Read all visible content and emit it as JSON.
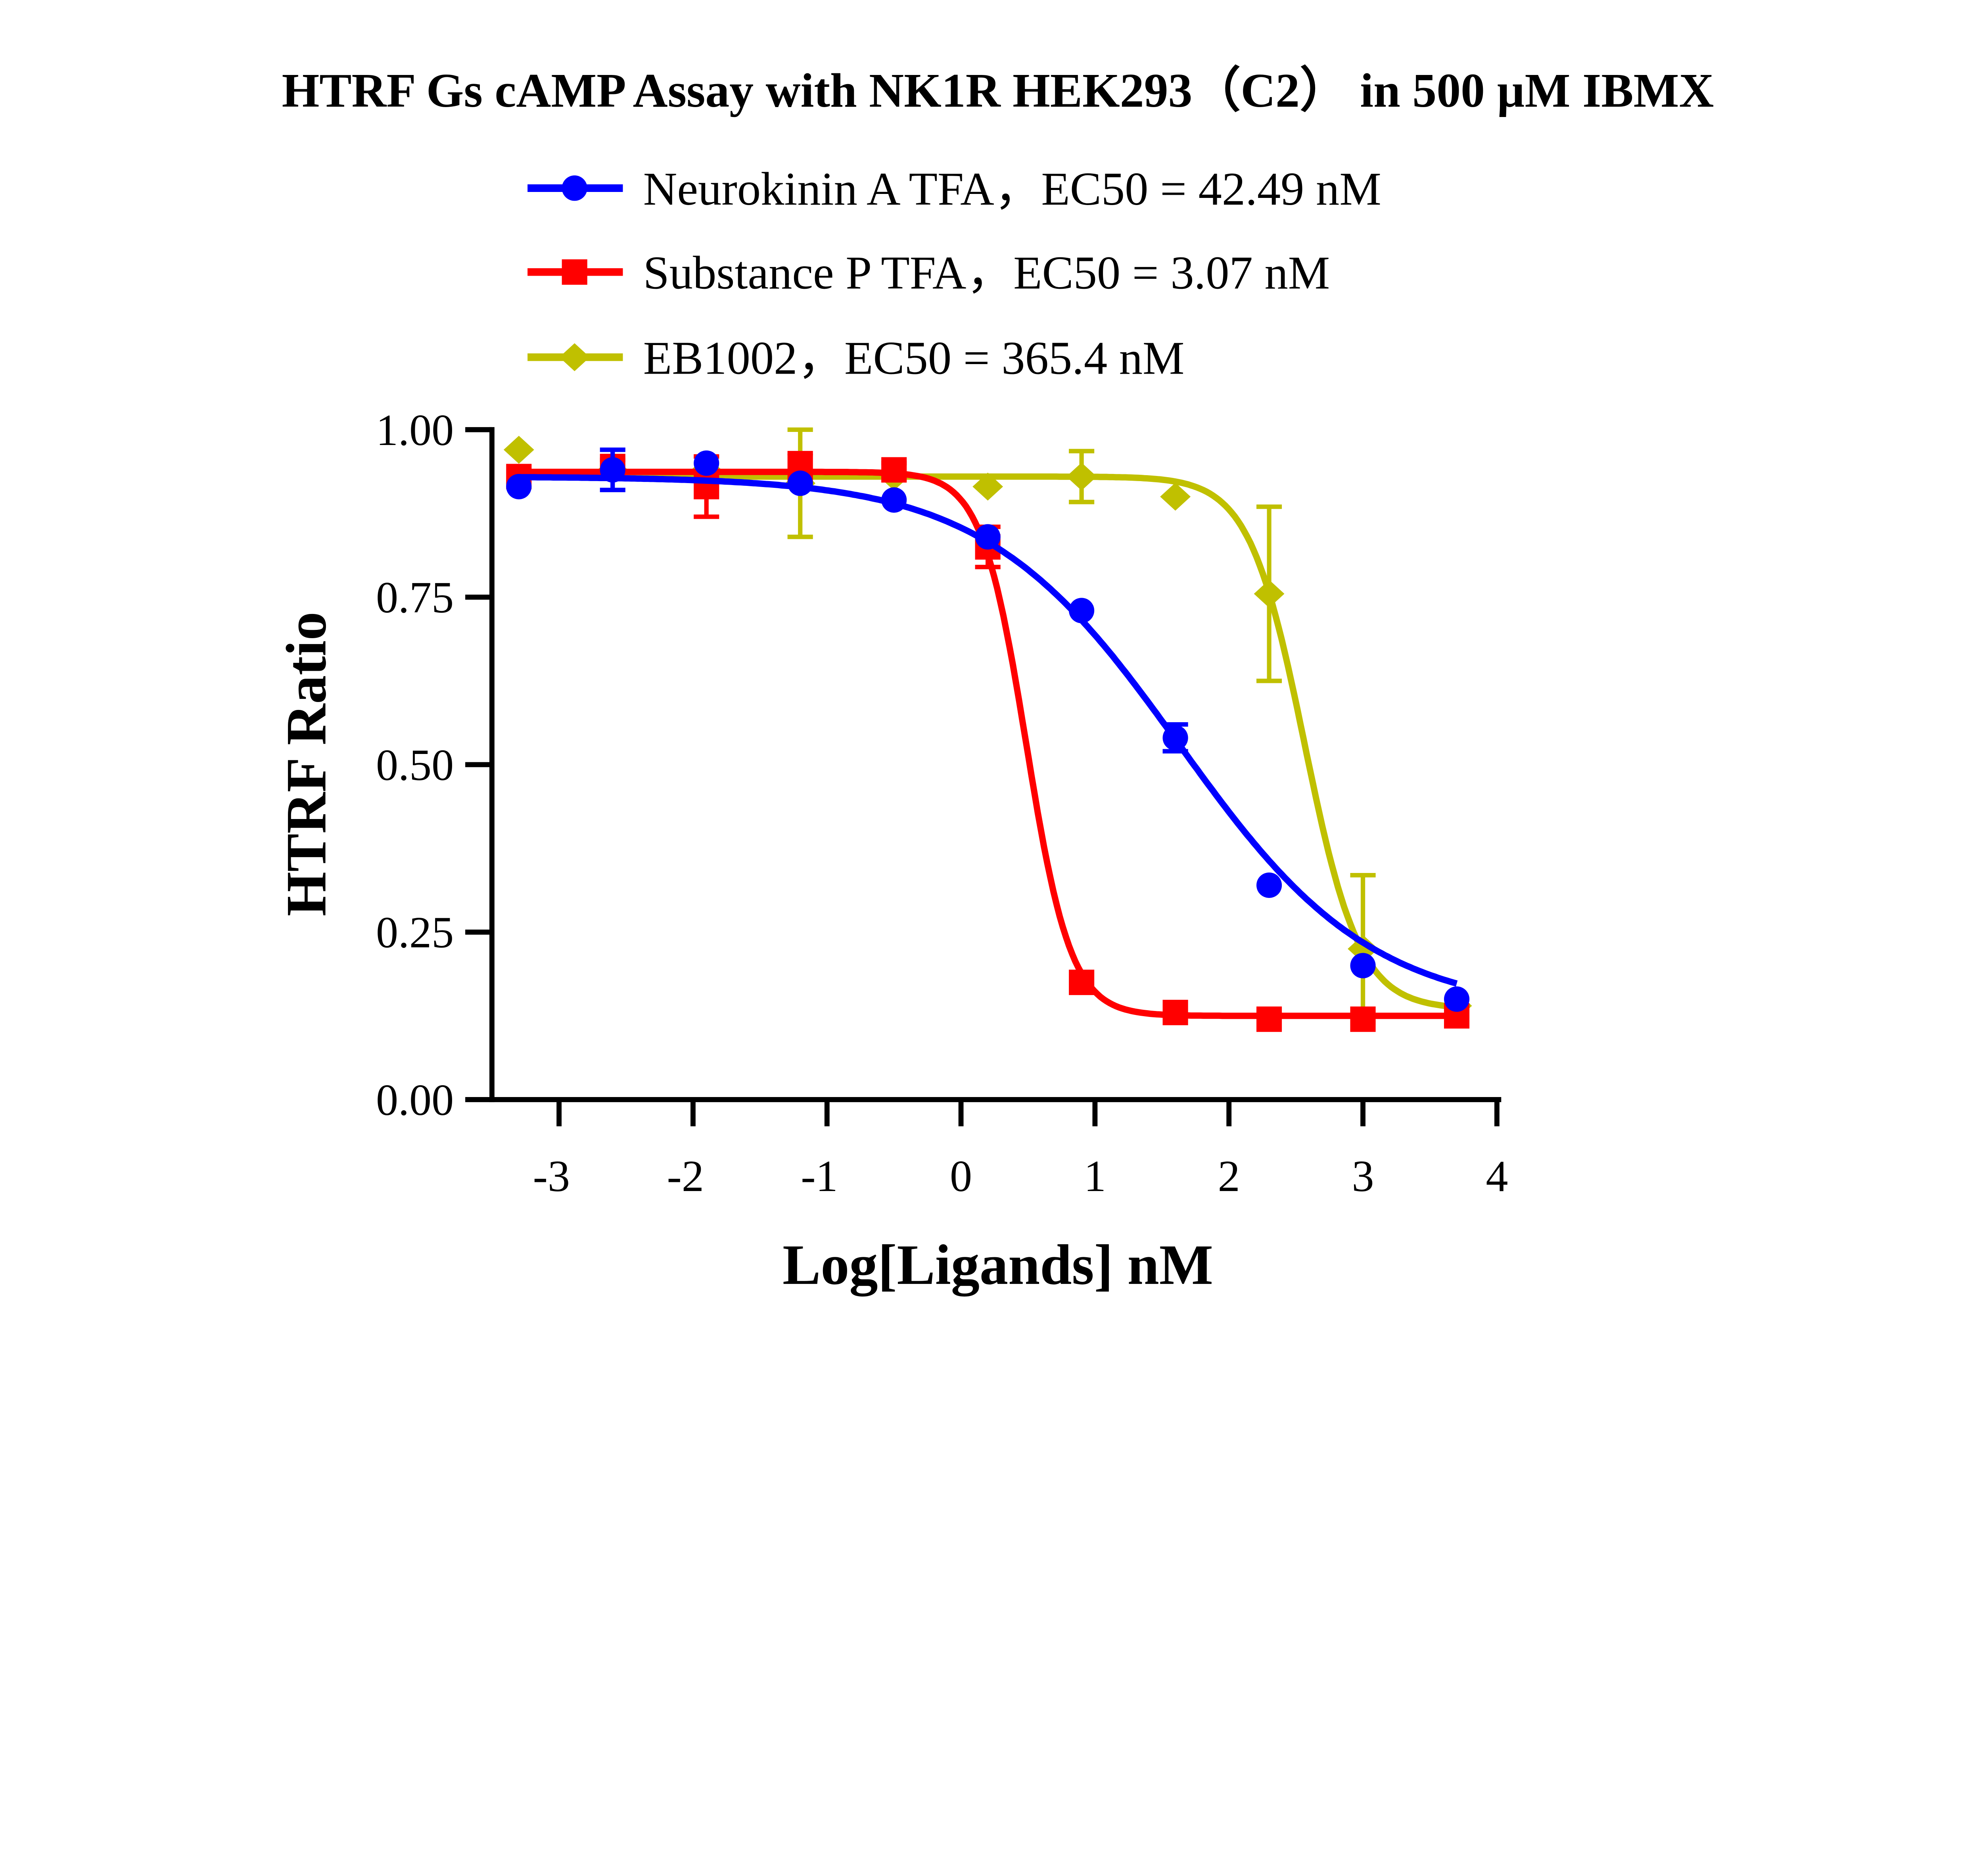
{
  "chart_data": {
    "type": "line",
    "title": "HTRF Gs cAMP Assay with NK1R HEK293（C2） in 500 µM IBMX",
    "xlabel": "Log[Ligands] nM",
    "ylabel": "HTRF Ratio",
    "xlim": [
      -3.5,
      4
    ],
    "ylim": [
      0,
      1
    ],
    "xticks": [
      -3,
      -2,
      -1,
      0,
      1,
      2,
      3,
      4
    ],
    "yticks": [
      "0.00",
      "0.25",
      "0.50",
      "0.75",
      "1.00"
    ],
    "grid": false,
    "legend_position": "top",
    "x": [
      -3.3,
      -2.6,
      -1.9,
      -1.2,
      -0.5,
      0.2,
      0.9,
      1.6,
      2.3,
      3.0,
      3.7
    ],
    "series": [
      {
        "name": "Neurokinin A TFA，EC50 = 42.49 nM",
        "color": "#0000ff",
        "marker": "circle",
        "values": [
          0.915,
          0.94,
          0.95,
          0.92,
          0.895,
          0.84,
          0.73,
          0.54,
          0.32,
          0.2,
          0.15
        ],
        "errors": [
          0.005,
          0.03,
          0.005,
          0.005,
          0.005,
          0.005,
          0.005,
          0.02,
          0.005,
          0.005,
          0.005
        ],
        "fit": {
          "top": 0.93,
          "bottom": 0.13,
          "logEC50": 1.628,
          "hill": -0.6
        }
      },
      {
        "name": "Substance P TFA，EC50 = 3.07 nM",
        "color": "#ff0000",
        "marker": "square",
        "values": [
          0.93,
          0.945,
          0.915,
          0.945,
          0.94,
          0.825,
          0.175,
          0.13,
          0.12,
          0.12,
          0.125
        ],
        "errors": [
          0.005,
          0.01,
          0.045,
          0.02,
          0.01,
          0.03,
          0.005,
          0.005,
          0.005,
          0.005,
          0.005
        ],
        "fit": {
          "top": 0.937,
          "bottom": 0.125,
          "logEC50": 0.487,
          "hill": -2.6
        }
      },
      {
        "name": "EB1002，EC50 = 365.4 nM",
        "color": "#c0c000",
        "marker": "diamond",
        "values": [
          0.97,
          0.94,
          0.94,
          0.92,
          0.93,
          0.915,
          0.93,
          0.9,
          0.755,
          0.225,
          0.14
        ],
        "errors": [
          0.005,
          0.005,
          0.005,
          0.08,
          0.005,
          0.005,
          0.038,
          0.005,
          0.13,
          0.11,
          0.005
        ],
        "fit": {
          "top": 0.93,
          "bottom": 0.135,
          "logEC50": 2.563,
          "hill": -2.1
        }
      }
    ]
  }
}
